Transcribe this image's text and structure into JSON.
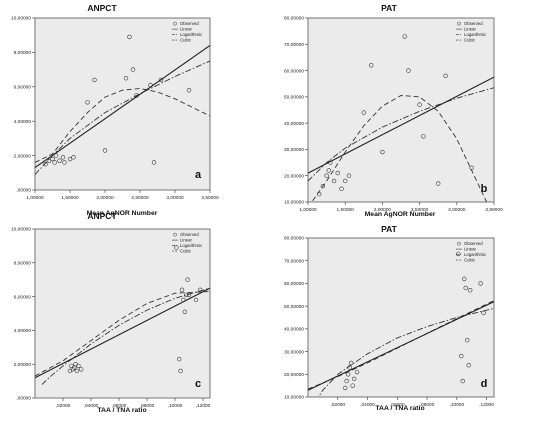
{
  "chart_data": [
    {
      "panel_letter": "a",
      "type": "scatter",
      "title": "ANPCT",
      "xlabel": "Mean AgNOR Number",
      "ylabel": "",
      "xlim": [
        1.0,
        3.5
      ],
      "ylim": [
        0,
        10
      ],
      "xticks": [
        1.0,
        1.5,
        2.0,
        2.5,
        3.0,
        3.5
      ],
      "xtick_labels": [
        "1,00000",
        "1,50000",
        "2,00000",
        "2,50000",
        "3,00000",
        "3,50000"
      ],
      "yticks": [
        0,
        2,
        4,
        6,
        8,
        10
      ],
      "ytick_labels": [
        ",00000",
        "2,00000",
        "4,00000",
        "6,00000",
        "8,00000",
        "10,00000"
      ],
      "grid": false,
      "legend_position": "top-right",
      "legend": [
        "Observed",
        "Linear",
        "Logarithmic",
        "Cubic"
      ],
      "observed": [
        [
          1.15,
          1.5
        ],
        [
          1.2,
          1.7
        ],
        [
          1.25,
          1.8
        ],
        [
          1.28,
          1.6
        ],
        [
          1.3,
          2.0
        ],
        [
          1.35,
          1.7
        ],
        [
          1.4,
          1.9
        ],
        [
          1.42,
          1.6
        ],
        [
          1.5,
          1.8
        ],
        [
          1.55,
          1.9
        ],
        [
          1.75,
          5.1
        ],
        [
          1.85,
          6.4
        ],
        [
          2.0,
          2.3
        ],
        [
          2.3,
          6.5
        ],
        [
          2.35,
          8.9
        ],
        [
          2.4,
          7.0
        ],
        [
          2.45,
          5.5
        ],
        [
          2.65,
          6.1
        ],
        [
          2.7,
          1.6
        ],
        [
          2.8,
          6.4
        ],
        [
          3.2,
          5.8
        ]
      ],
      "linear": [
        [
          1.0,
          1.3
        ],
        [
          3.5,
          8.4
        ]
      ],
      "logarithmic": [
        [
          1.0,
          0.9
        ],
        [
          1.25,
          2.0
        ],
        [
          1.5,
          3.0
        ],
        [
          2.0,
          4.5
        ],
        [
          2.5,
          5.6
        ],
        [
          3.0,
          6.6
        ],
        [
          3.5,
          7.5
        ]
      ],
      "cubic": [
        [
          1.0,
          1.6
        ],
        [
          1.25,
          2.1
        ],
        [
          1.5,
          3.4
        ],
        [
          1.75,
          4.5
        ],
        [
          2.0,
          5.4
        ],
        [
          2.25,
          5.8
        ],
        [
          2.5,
          5.9
        ],
        [
          2.75,
          5.7
        ],
        [
          3.0,
          5.3
        ],
        [
          3.25,
          4.8
        ],
        [
          3.5,
          4.3
        ]
      ]
    },
    {
      "panel_letter": "b",
      "type": "scatter",
      "title": "PAT",
      "xlabel": "Mean AgNOR Number",
      "ylabel": "",
      "xlim": [
        1.0,
        3.5
      ],
      "ylim": [
        10,
        80
      ],
      "xticks": [
        1.0,
        1.5,
        2.0,
        2.5,
        3.0,
        3.5
      ],
      "xtick_labels": [
        "1,00000",
        "1,50000",
        "2,00000",
        "2,50000",
        "3,00000",
        "3,50000"
      ],
      "yticks": [
        10,
        20,
        30,
        40,
        50,
        60,
        70,
        80
      ],
      "ytick_labels": [
        "10,00000",
        "20,00000",
        "30,00000",
        "40,00000",
        "50,00000",
        "60,00000",
        "70,00000",
        "80,00000"
      ],
      "grid": false,
      "legend_position": "top-right",
      "legend": [
        "Observed",
        "Linear",
        "Logarithmic",
        "Cubic"
      ],
      "observed": [
        [
          1.15,
          13.0
        ],
        [
          1.2,
          16.0
        ],
        [
          1.25,
          20.0
        ],
        [
          1.28,
          22.0
        ],
        [
          1.3,
          25.0
        ],
        [
          1.35,
          18.0
        ],
        [
          1.4,
          21.0
        ],
        [
          1.45,
          15.0
        ],
        [
          1.5,
          18.0
        ],
        [
          1.55,
          20.0
        ],
        [
          1.75,
          44.0
        ],
        [
          1.85,
          62.0
        ],
        [
          2.0,
          29.0
        ],
        [
          2.3,
          73.0
        ],
        [
          2.35,
          60.0
        ],
        [
          2.5,
          47.0
        ],
        [
          2.55,
          35.0
        ],
        [
          2.75,
          17.0
        ],
        [
          2.85,
          58.0
        ],
        [
          3.2,
          23.0
        ]
      ],
      "linear": [
        [
          1.0,
          21.0
        ],
        [
          3.5,
          57.5
        ]
      ],
      "logarithmic": [
        [
          1.0,
          18.0
        ],
        [
          1.25,
          25.0
        ],
        [
          1.5,
          30.5
        ],
        [
          2.0,
          38.5
        ],
        [
          2.5,
          44.5
        ],
        [
          3.0,
          49.5
        ],
        [
          3.5,
          53.5
        ]
      ],
      "cubic": [
        [
          1.0,
          8.0
        ],
        [
          1.25,
          18.0
        ],
        [
          1.5,
          29.0
        ],
        [
          1.75,
          39.0
        ],
        [
          2.0,
          46.5
        ],
        [
          2.25,
          50.5
        ],
        [
          2.5,
          50.0
        ],
        [
          2.75,
          44.5
        ],
        [
          3.0,
          34.0
        ],
        [
          3.25,
          19.0
        ],
        [
          3.4,
          10.0
        ]
      ]
    },
    {
      "panel_letter": "c",
      "type": "scatter",
      "title": "ANPCT",
      "xlabel": "TAA / TNA ratio",
      "ylabel": "",
      "xlim": [
        0.0,
        0.125
      ],
      "ylim": [
        0,
        10
      ],
      "xticks": [
        0.02,
        0.04,
        0.06,
        0.08,
        0.1,
        0.12
      ],
      "xtick_labels": [
        ",02000",
        ",04000",
        ",06000",
        ",08000",
        ",10000",
        ",12000"
      ],
      "yticks": [
        0,
        2,
        4,
        6,
        8,
        10
      ],
      "ytick_labels": [
        ",00000",
        "2,00000",
        "4,00000",
        "6,00000",
        "8,00000",
        "10,00000"
      ],
      "grid": false,
      "legend_position": "top-right",
      "legend": [
        "Observed",
        "Linear",
        "Logarithmic",
        "Cubic"
      ],
      "observed": [
        [
          0.025,
          1.6
        ],
        [
          0.026,
          1.9
        ],
        [
          0.027,
          1.7
        ],
        [
          0.028,
          1.8
        ],
        [
          0.029,
          2.0
        ],
        [
          0.03,
          1.6
        ],
        [
          0.031,
          1.9
        ],
        [
          0.033,
          1.7
        ],
        [
          0.101,
          8.9
        ],
        [
          0.103,
          2.3
        ],
        [
          0.104,
          1.6
        ],
        [
          0.105,
          6.4
        ],
        [
          0.106,
          5.8
        ],
        [
          0.107,
          5.1
        ],
        [
          0.108,
          6.1
        ],
        [
          0.109,
          7.0
        ],
        [
          0.11,
          6.1
        ],
        [
          0.115,
          5.8
        ],
        [
          0.118,
          6.4
        ]
      ],
      "linear": [
        [
          0.0,
          1.2
        ],
        [
          0.125,
          6.5
        ]
      ],
      "logarithmic": [
        [
          0.005,
          0.8
        ],
        [
          0.01,
          1.2
        ],
        [
          0.02,
          1.9
        ],
        [
          0.04,
          3.2
        ],
        [
          0.06,
          4.3
        ],
        [
          0.08,
          5.2
        ],
        [
          0.1,
          5.9
        ],
        [
          0.125,
          6.5
        ]
      ],
      "cubic": [
        [
          0.0,
          1.3
        ],
        [
          0.02,
          2.2
        ],
        [
          0.04,
          3.4
        ],
        [
          0.06,
          4.6
        ],
        [
          0.08,
          5.6
        ],
        [
          0.1,
          6.2
        ],
        [
          0.125,
          6.3
        ]
      ]
    },
    {
      "panel_letter": "d",
      "type": "scatter",
      "title": "PAT",
      "xlabel": "TAA / TNA ratio",
      "ylabel": "",
      "xlim": [
        0.0,
        0.125
      ],
      "ylim": [
        10,
        80
      ],
      "xticks": [
        0.02,
        0.04,
        0.06,
        0.08,
        0.1,
        0.12
      ],
      "xtick_labels": [
        ",02000",
        ",04000",
        ",06000",
        ",08000",
        ",10000",
        ",12000"
      ],
      "yticks": [
        10,
        20,
        30,
        40,
        50,
        60,
        70,
        80
      ],
      "ytick_labels": [
        "10,00000",
        "20,00000",
        "30,00000",
        "40,00000",
        "50,00000",
        "60,00000",
        "70,00000",
        "80,00000"
      ],
      "grid": false,
      "legend_position": "top-right",
      "legend": [
        "Observed",
        "Linear",
        "Logarithmic",
        "Cubic"
      ],
      "observed": [
        [
          0.025,
          14.0
        ],
        [
          0.026,
          17.0
        ],
        [
          0.027,
          20.0
        ],
        [
          0.028,
          23.0
        ],
        [
          0.029,
          25.0
        ],
        [
          0.03,
          15.0
        ],
        [
          0.031,
          18.0
        ],
        [
          0.033,
          21.0
        ],
        [
          0.101,
          73.0
        ],
        [
          0.103,
          28.0
        ],
        [
          0.104,
          17.0
        ],
        [
          0.105,
          62.0
        ],
        [
          0.106,
          58.0
        ],
        [
          0.107,
          35.0
        ],
        [
          0.108,
          24.0
        ],
        [
          0.109,
          57.0
        ],
        [
          0.116,
          60.0
        ],
        [
          0.118,
          47.0
        ]
      ],
      "linear": [
        [
          0.0,
          13.0
        ],
        [
          0.125,
          52.0
        ]
      ],
      "logarithmic": [
        [
          0.005,
          8.0
        ],
        [
          0.01,
          13.0
        ],
        [
          0.02,
          20.0
        ],
        [
          0.04,
          29.0
        ],
        [
          0.06,
          36.0
        ],
        [
          0.08,
          41.0
        ],
        [
          0.1,
          45.0
        ],
        [
          0.125,
          49.0
        ]
      ],
      "cubic": [
        [
          0.0,
          13.5
        ],
        [
          0.02,
          19.0
        ],
        [
          0.04,
          25.0
        ],
        [
          0.06,
          31.5
        ],
        [
          0.08,
          38.0
        ],
        [
          0.1,
          44.5
        ],
        [
          0.125,
          52.5
        ]
      ]
    }
  ]
}
